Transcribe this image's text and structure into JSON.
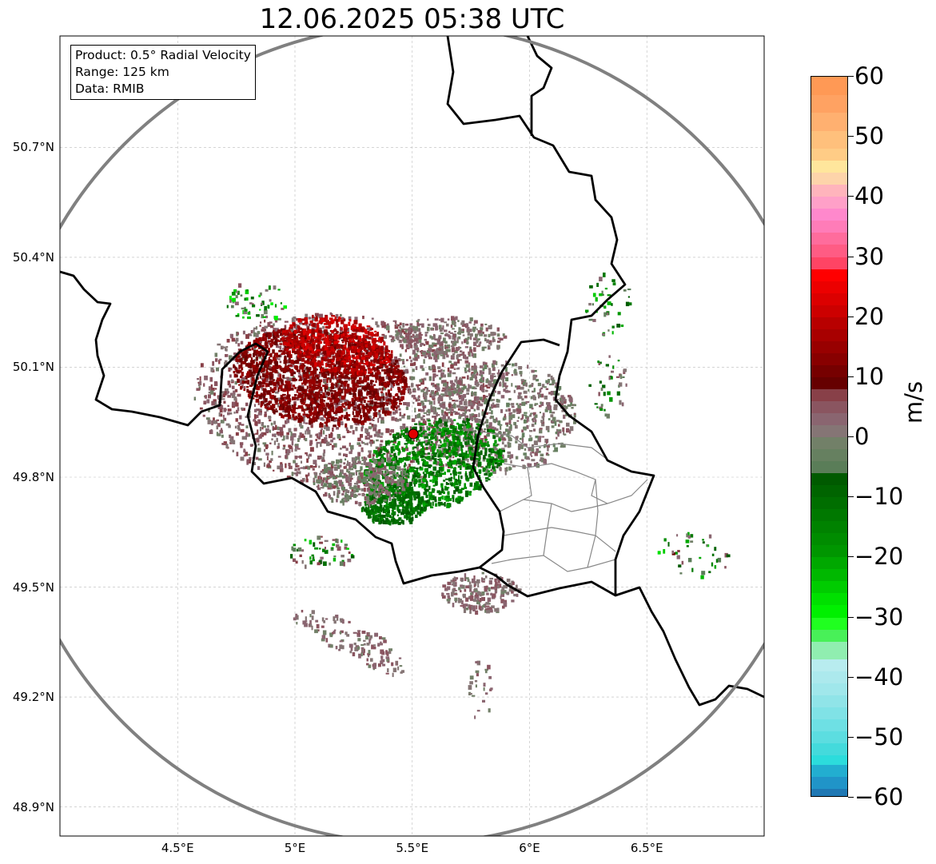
{
  "title": "12.06.2025 05:38 UTC",
  "info_box": {
    "product": "Product: 0.5° Radial Velocity",
    "range": "Range: 125 km",
    "data": "Data: RMIB"
  },
  "axes": {
    "lon_ticks": [
      {
        "value": 4.5,
        "label": "4.5°E"
      },
      {
        "value": 5.0,
        "label": "5°E"
      },
      {
        "value": 5.5,
        "label": "5.5°E"
      },
      {
        "value": 6.0,
        "label": "6°E"
      },
      {
        "value": 6.5,
        "label": "6.5°E"
      }
    ],
    "lat_ticks": [
      {
        "value": 50.7,
        "label": "50.7°N"
      },
      {
        "value": 50.4,
        "label": "50.4°N"
      },
      {
        "value": 50.1,
        "label": "50.1°N"
      },
      {
        "value": 49.8,
        "label": "49.8°N"
      },
      {
        "value": 49.5,
        "label": "49.5°N"
      },
      {
        "value": 49.2,
        "label": "49.2°N"
      },
      {
        "value": 48.9,
        "label": "48.9°N"
      }
    ]
  },
  "radar_site": {
    "lon": 5.505,
    "lat": 49.914,
    "color": "#e00000"
  },
  "range_ring_color": "#808080",
  "colorbar": {
    "label": "m/s",
    "min": -60,
    "max": 60,
    "ticks": [
      {
        "value": 60,
        "label": "60"
      },
      {
        "value": 50,
        "label": "50"
      },
      {
        "value": 40,
        "label": "40"
      },
      {
        "value": 30,
        "label": "30"
      },
      {
        "value": 20,
        "label": "20"
      },
      {
        "value": 10,
        "label": "10"
      },
      {
        "value": 0,
        "label": "0"
      },
      {
        "value": -10,
        "label": "−10"
      },
      {
        "value": -20,
        "label": "−20"
      },
      {
        "value": -30,
        "label": "−30"
      },
      {
        "value": -40,
        "label": "−40"
      },
      {
        "value": -50,
        "label": "−50"
      },
      {
        "value": -60,
        "label": "−60"
      }
    ],
    "segments": [
      [
        60,
        57,
        "#ff9955"
      ],
      [
        57,
        54,
        "#ffa262"
      ],
      [
        54,
        51,
        "#ffb070"
      ],
      [
        51,
        48,
        "#ffc07c"
      ],
      [
        48,
        46,
        "#ffcc86"
      ],
      [
        46,
        44,
        "#ffe69c"
      ],
      [
        44,
        42,
        "#fdd4aa"
      ],
      [
        42,
        40,
        "#ffb4bc"
      ],
      [
        40,
        38,
        "#ffa0c8"
      ],
      [
        38,
        36,
        "#ff88cc"
      ],
      [
        36,
        34,
        "#ff7cb8"
      ],
      [
        34,
        32,
        "#ff6c9c"
      ],
      [
        32,
        30,
        "#ff5c84"
      ],
      [
        30,
        28,
        "#ff4464"
      ],
      [
        28,
        26,
        "#ff0000"
      ],
      [
        26,
        24,
        "#ec0000"
      ],
      [
        24,
        22,
        "#dc0000"
      ],
      [
        22,
        20,
        "#cc0000"
      ],
      [
        20,
        18,
        "#b80000"
      ],
      [
        18,
        16,
        "#a80000"
      ],
      [
        16,
        14,
        "#980000"
      ],
      [
        14,
        12,
        "#880000"
      ],
      [
        12,
        10,
        "#760000"
      ],
      [
        10,
        8,
        "#660000"
      ],
      [
        8,
        6,
        "#884048"
      ],
      [
        6,
        4,
        "#8a5560"
      ],
      [
        4,
        2,
        "#8a6570"
      ],
      [
        2,
        0,
        "#857575"
      ],
      [
        0,
        -2,
        "#728068"
      ],
      [
        -2,
        -4,
        "#668060"
      ],
      [
        -4,
        -6,
        "#5a7d58"
      ],
      [
        -6,
        -8,
        "#005a00"
      ],
      [
        -8,
        -10,
        "#006400"
      ],
      [
        -10,
        -12,
        "#006e00"
      ],
      [
        -12,
        -14,
        "#007800"
      ],
      [
        -14,
        -16,
        "#008200"
      ],
      [
        -16,
        -18,
        "#008c00"
      ],
      [
        -18,
        -20,
        "#009600"
      ],
      [
        -20,
        -22,
        "#00a800"
      ],
      [
        -22,
        -24,
        "#00b800"
      ],
      [
        -24,
        -26,
        "#00cc00"
      ],
      [
        -26,
        -28,
        "#00e000"
      ],
      [
        -28,
        -30,
        "#00f000"
      ],
      [
        -30,
        -32,
        "#20ff20"
      ],
      [
        -32,
        -34,
        "#48f058"
      ],
      [
        -34,
        -37,
        "#90eeb0"
      ],
      [
        -37,
        -39,
        "#b8ecef"
      ],
      [
        -39,
        -41,
        "#ace9ed"
      ],
      [
        -41,
        -43,
        "#a0e7eb"
      ],
      [
        -43,
        -45,
        "#90e4e8"
      ],
      [
        -45,
        -47,
        "#80e2e6"
      ],
      [
        -47,
        -49,
        "#6ee0e4"
      ],
      [
        -49,
        -51,
        "#5cdde0"
      ],
      [
        -51,
        -53,
        "#44dadc"
      ],
      [
        -53,
        -54.5,
        "#2cdcdc"
      ],
      [
        -54.5,
        -56.5,
        "#22aed0"
      ],
      [
        -56.5,
        -58.5,
        "#2094c8"
      ],
      [
        -58.5,
        -60,
        "#1f78b4"
      ]
    ]
  }
}
